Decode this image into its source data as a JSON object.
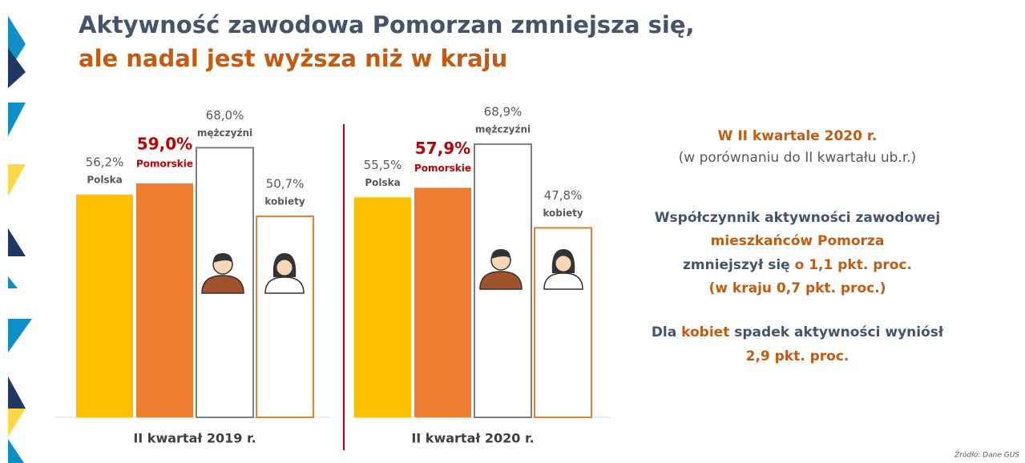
{
  "chart_data": {
    "type": "bar",
    "title": [
      "Aktywność zawodowa Pomorzan zmniejsza się,",
      "ale nadal jest wyższa niż w kraju"
    ],
    "categories": [
      "II kwartał 2019 r.",
      "II kwartał 2020 r."
    ],
    "series": [
      {
        "name": "Polska",
        "color": "#FFC000",
        "values": [
          56.2,
          55.5
        ],
        "value_labels": [
          "56,2%",
          "55,5%"
        ]
      },
      {
        "name": "Pomorskie",
        "color": "#ED7D31",
        "values": [
          59.0,
          57.9
        ],
        "value_labels": [
          "59,0%",
          "57,9%"
        ]
      },
      {
        "name": "mężczyźni",
        "color": "#FFFFFF",
        "outline": "#7F7F7F",
        "values": [
          68.0,
          68.9
        ],
        "value_labels": [
          "68,0%",
          "68,9%"
        ]
      },
      {
        "name": "kobiety",
        "color": "#FFFFFF",
        "outline": "#ED7D31",
        "values": [
          50.7,
          47.8
        ],
        "value_labels": [
          "50,7%",
          "47,8%"
        ]
      }
    ],
    "source": "Źródło: Dane GUS"
  },
  "panel": {
    "heading": "W II kwartale 2020 r.",
    "subheading": "(w porównaniu do II kwartału ub.r.)",
    "line1": "Współczynnik aktywności zawodowej",
    "line2": "mieszkańców Pomorza",
    "line3a": "zmniejszył się ",
    "line3b": "o 1,1 pkt. proc.",
    "line4": "(w kraju 0,7 pkt. proc.)",
    "line5a": "Dla ",
    "line5b": "kobiet",
    "line5c": " spadek aktywności wyniósł",
    "line6": "2,9 pkt. proc."
  }
}
